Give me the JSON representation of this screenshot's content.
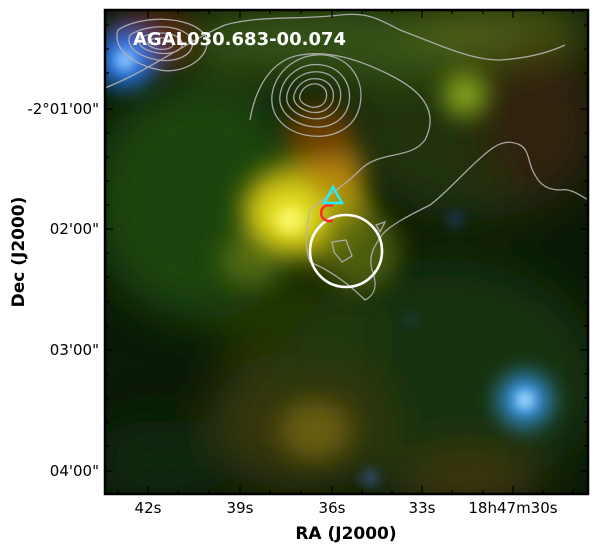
{
  "figure": {
    "title": "AGAL030.683-00.074",
    "x_axis_label": "RA (J2000)",
    "y_axis_label": "Dec (J2000)",
    "x_tick_labels": [
      "42s",
      "39s",
      "36s",
      "33s",
      "18h47m30s"
    ],
    "y_tick_labels": [
      "-2°01'00\"",
      "02'00\"",
      "03'00\"",
      "04'00\""
    ]
  },
  "colors": {
    "frame": "#000000",
    "contour": "#b4b4b4",
    "circle_large": "#ffffff",
    "circle_small": "#ff2a2a",
    "triangle": "#22f0ff",
    "title_text": "#ffffff"
  },
  "markers": {
    "large_circle": "white-circle-icon",
    "small_circle": "red-circle-icon",
    "triangle": "cyan-triangle-icon"
  }
}
